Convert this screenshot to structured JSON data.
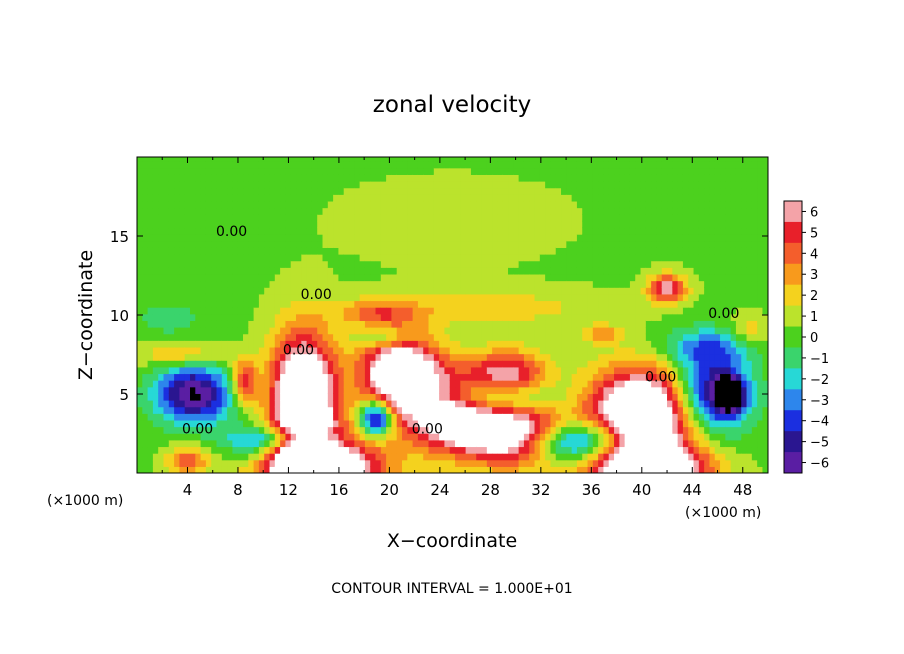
{
  "chart_data": {
    "type": "heatmap",
    "title": "zonal velocity",
    "xlabel": "X−coordinate",
    "ylabel": "Z−coordinate",
    "x_unit_left": "(×1000 m)",
    "x_unit_right": "(×1000 m)",
    "footer": "CONTOUR INTERVAL = 1.000E+01",
    "xlim": [
      0,
      50
    ],
    "ylim": [
      0,
      20
    ],
    "x_ticks": [
      4,
      8,
      12,
      16,
      20,
      24,
      28,
      32,
      36,
      40,
      44,
      48
    ],
    "y_ticks": [
      5,
      10,
      15
    ],
    "colorbar": {
      "levels": [
        6,
        5,
        4,
        3,
        2,
        1,
        0,
        -1,
        -2,
        -3,
        -4,
        -5,
        -6
      ],
      "colors": [
        "#f4a3a8",
        "#e8202a",
        "#f45e2c",
        "#f89a1c",
        "#f4d21e",
        "#bbe32c",
        "#4cd11e",
        "#3ad46c",
        "#27d8d6",
        "#2d86ec",
        "#1b2fe0",
        "#2a1690",
        "#5a1ea3"
      ]
    },
    "contour_labels": [
      {
        "text": "0.00",
        "x": 7.5,
        "y": 15.0
      },
      {
        "text": "0.00",
        "x": 14.2,
        "y": 11.0
      },
      {
        "text": "0.00",
        "x": 12.8,
        "y": 7.5
      },
      {
        "text": "0.00",
        "x": 4.8,
        "y": 2.5
      },
      {
        "text": "0.00",
        "x": 23.0,
        "y": 2.5
      },
      {
        "text": "0.00",
        "x": 41.5,
        "y": 5.8
      },
      {
        "text": "0.00",
        "x": 46.5,
        "y": 9.8
      }
    ],
    "field": {
      "background": 0.3,
      "features": [
        {
          "x": 13.2,
          "y": 4.5,
          "a": 11,
          "rx": 2.6,
          "ry": 4.3
        },
        {
          "x": 14.5,
          "y": 0.2,
          "a": 10,
          "rx": 5.0,
          "ry": 2.3
        },
        {
          "x": 20.8,
          "y": 6.3,
          "a": 10,
          "rx": 3.0,
          "ry": 2.6
        },
        {
          "x": 25.0,
          "y": 4.0,
          "a": 9,
          "rx": 3.5,
          "ry": 2.4
        },
        {
          "x": 29.5,
          "y": 6.2,
          "a": 6,
          "rx": 3.0,
          "ry": 1.6
        },
        {
          "x": 27.5,
          "y": 4.8,
          "a": -6,
          "rx": 5.0,
          "ry": 1.2
        },
        {
          "x": 30.0,
          "y": 2.5,
          "a": 9,
          "rx": 4.0,
          "ry": 2.0
        },
        {
          "x": 35.0,
          "y": 2.0,
          "a": -7,
          "rx": 4.5,
          "ry": 1.3
        },
        {
          "x": 40.0,
          "y": 3.8,
          "a": 11,
          "rx": 4.2,
          "ry": 2.8
        },
        {
          "x": 40.5,
          "y": 0.1,
          "a": 11,
          "rx": 4.5,
          "ry": 1.8
        },
        {
          "x": 45.5,
          "y": 5.0,
          "a": -7,
          "rx": 3.0,
          "ry": 2.5
        },
        {
          "x": 47.0,
          "y": 5.0,
          "a": -9,
          "rx": 1.0,
          "ry": 1.0
        },
        {
          "x": 42.0,
          "y": 11.7,
          "a": 6,
          "rx": 1.5,
          "ry": 0.9
        },
        {
          "x": 4.5,
          "y": 5.0,
          "a": -7,
          "rx": 3.0,
          "ry": 1.8
        },
        {
          "x": 8.5,
          "y": 5.8,
          "a": 5,
          "rx": 1.0,
          "ry": 1.4
        },
        {
          "x": 4.0,
          "y": 0.8,
          "a": 4,
          "rx": 1.6,
          "ry": 0.9
        },
        {
          "x": 19.0,
          "y": 3.5,
          "a": -8,
          "rx": 1.3,
          "ry": 1.1
        },
        {
          "x": 12.0,
          "y": 2.2,
          "a": -5,
          "rx": 4.0,
          "ry": 0.8
        },
        {
          "x": 9.5,
          "y": 1.5,
          "a": -2.5,
          "rx": 2.5,
          "ry": 1.5
        },
        {
          "x": 3.5,
          "y": 7.5,
          "a": 2.5,
          "rx": 3.5,
          "ry": 0.7
        },
        {
          "x": 2.5,
          "y": 9.8,
          "a": -1.5,
          "rx": 2.5,
          "ry": 1.0
        },
        {
          "x": 19.0,
          "y": 10.2,
          "a": 3,
          "rx": 3.0,
          "ry": 0.8
        },
        {
          "x": 28.0,
          "y": 10.5,
          "a": 1.8,
          "rx": 9.0,
          "ry": 1.2
        },
        {
          "x": 20.0,
          "y": 8.5,
          "a": -3,
          "rx": 2.0,
          "ry": 0.7
        },
        {
          "x": 37.0,
          "y": 8.8,
          "a": 3,
          "rx": 1.5,
          "ry": 0.6
        },
        {
          "x": 45.0,
          "y": 8.0,
          "a": -3,
          "rx": 3.5,
          "ry": 1.2
        },
        {
          "x": 48.5,
          "y": 9.0,
          "a": 2,
          "rx": 1.5,
          "ry": 1.0
        },
        {
          "x": 25.0,
          "y": 16.0,
          "a": 0.6,
          "rx": 10.0,
          "ry": 3.0
        }
      ]
    }
  }
}
